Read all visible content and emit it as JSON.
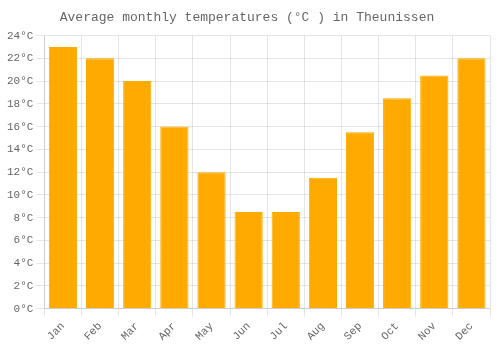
{
  "chart_data": {
    "type": "bar",
    "title": "Average monthly temperatures (°C ) in Theunissen",
    "categories": [
      "Jan",
      "Feb",
      "Mar",
      "Apr",
      "May",
      "Jun",
      "Jul",
      "Aug",
      "Sep",
      "Oct",
      "Nov",
      "Dec"
    ],
    "values": [
      23.0,
      22.0,
      20.0,
      16.0,
      12.0,
      8.5,
      8.5,
      11.5,
      15.5,
      18.5,
      20.5,
      22.0
    ],
    "color": "#FFAA00",
    "ylim": [
      0,
      24
    ],
    "yticks": [
      {
        "value": 0,
        "label": "0°C"
      },
      {
        "value": 2,
        "label": "2°C"
      },
      {
        "value": 4,
        "label": "4°C"
      },
      {
        "value": 6,
        "label": "6°C"
      },
      {
        "value": 8,
        "label": "8°C"
      },
      {
        "value": 10,
        "label": "10°C"
      },
      {
        "value": 12,
        "label": "12°C"
      },
      {
        "value": 14,
        "label": "14°C"
      },
      {
        "value": 16,
        "label": "16°C"
      },
      {
        "value": 18,
        "label": "18°C"
      },
      {
        "value": 20,
        "label": "20°C"
      },
      {
        "value": 22,
        "label": "22°C"
      },
      {
        "value": 24,
        "label": "24°C"
      }
    ],
    "grid": true
  }
}
